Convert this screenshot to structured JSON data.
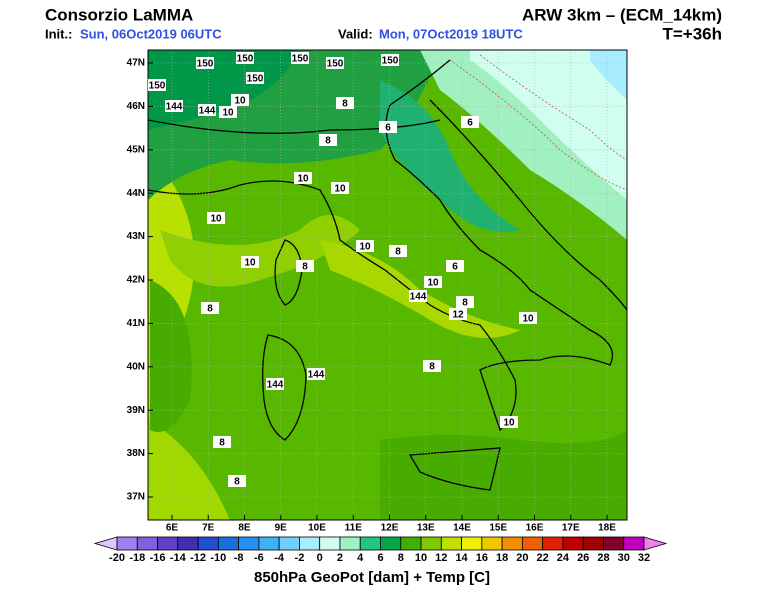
{
  "header": {
    "org": "Consorzio LaMMA",
    "init_label": "Init.:",
    "init": "Sun, 06Oct2019 06UTC",
    "valid_label": "Valid:",
    "valid": "Mon, 07Oct2019 18UTC",
    "model": "ARW 3km – (ECM_14km)",
    "step": "T=+36h"
  },
  "map": {
    "lat_labels": [
      "47N",
      "46N",
      "45N",
      "44N",
      "43N",
      "42N",
      "41N",
      "40N",
      "39N",
      "38N",
      "37N"
    ],
    "lon_labels": [
      "6E",
      "7E",
      "8E",
      "9E",
      "10E",
      "11E",
      "12E",
      "13E",
      "14E",
      "15E",
      "16E",
      "17E",
      "18E"
    ],
    "contour_labels": [
      "150",
      "150",
      "150",
      "150",
      "150",
      "150",
      "150",
      "144",
      "144",
      "144",
      "144",
      "144",
      "10",
      "10",
      "10",
      "10",
      "10",
      "10",
      "10",
      "10",
      "10",
      "8",
      "8",
      "8",
      "8",
      "8",
      "8",
      "8",
      "8",
      "6",
      "6",
      "6",
      "12",
      "8",
      "10"
    ]
  },
  "colorbar": {
    "ticks": [
      -20,
      -18,
      -16,
      -14,
      -12,
      -10,
      -8,
      -6,
      -4,
      -2,
      0,
      2,
      4,
      6,
      8,
      10,
      12,
      14,
      16,
      18,
      20,
      22,
      24,
      26,
      28,
      30,
      32
    ],
    "colors": [
      "#e0c8ff",
      "#a080f0",
      "#8060e0",
      "#6040c8",
      "#4030b0",
      "#2050d0",
      "#1870e0",
      "#2890f0",
      "#40b0f8",
      "#70d0ff",
      "#a8ecff",
      "#d0fff0",
      "#a0f0c0",
      "#20c880",
      "#00a848",
      "#40b000",
      "#80c800",
      "#c0e000",
      "#f0f000",
      "#f0c800",
      "#f09000",
      "#f06000",
      "#e02000",
      "#c00000",
      "#a00000",
      "#800030",
      "#c000c0",
      "#f080f0"
    ],
    "title": "850hPa GeoPot [dam] + Temp [C]"
  }
}
